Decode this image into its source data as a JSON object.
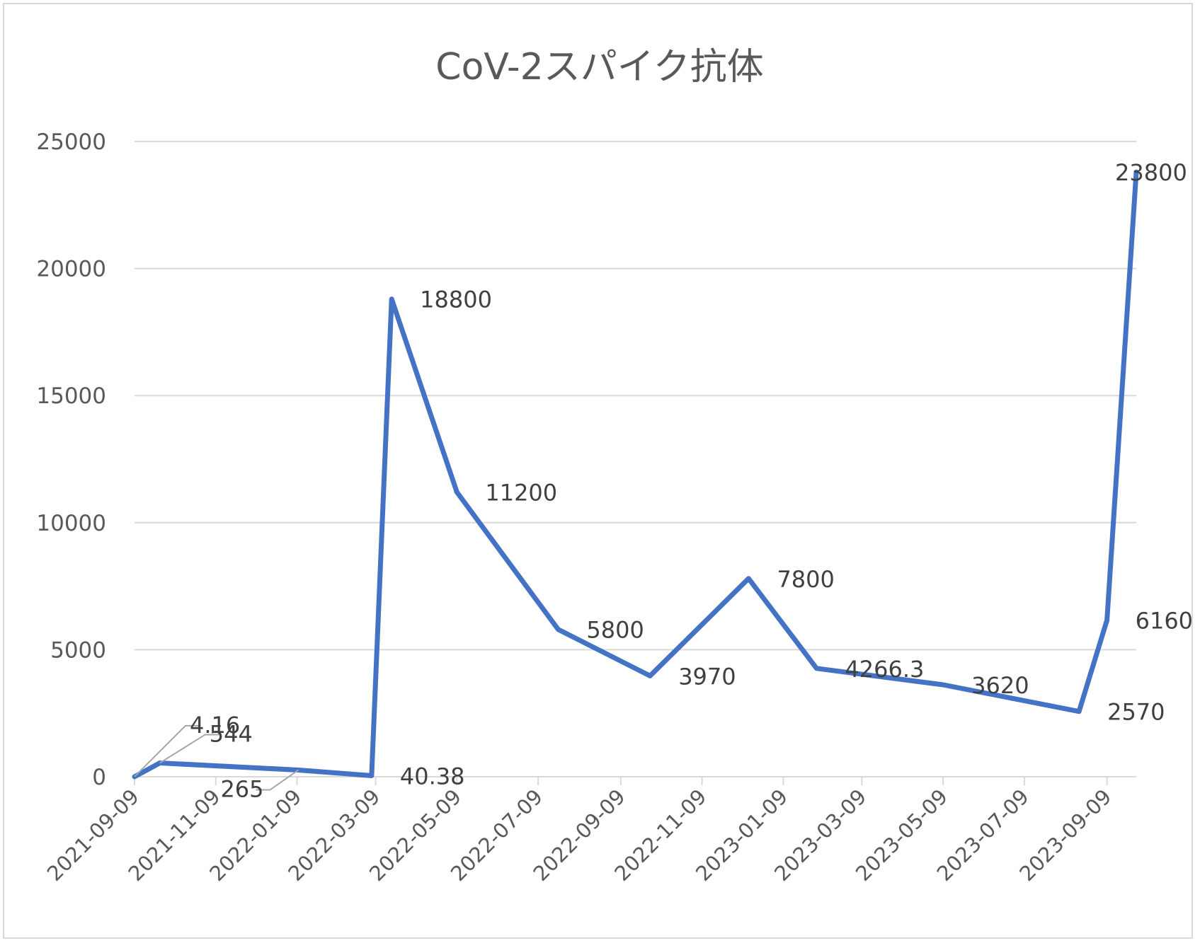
{
  "chart_data": {
    "type": "line",
    "title": "CoV-2スパイク抗体",
    "xlabel": "",
    "ylabel": "",
    "x_axis": {
      "type": "date",
      "range": [
        "2021-09-09",
        "2023-10-01"
      ],
      "tick_labels": [
        "2021-09-09",
        "2021-11-09",
        "2022-01-09",
        "2022-03-09",
        "2022-05-09",
        "2022-07-09",
        "2022-09-09",
        "2022-11-09",
        "2023-01-09",
        "2023-03-09",
        "2023-05-09",
        "2023-07-09",
        "2023-09-09"
      ]
    },
    "y_axis": {
      "range": [
        0,
        25000
      ],
      "tick_labels": [
        "0",
        "5000",
        "10000",
        "15000",
        "20000",
        "25000"
      ]
    },
    "grid": true,
    "legend": "none",
    "series": [
      {
        "color": "#4472C4",
        "points": [
          {
            "x": "2021-09-09",
            "y": 4.16,
            "label": "4.16"
          },
          {
            "x": "2021-09-28",
            "y": 544,
            "label": "544"
          },
          {
            "x": "2022-01-10",
            "y": 265,
            "label": "265"
          },
          {
            "x": "2022-03-06",
            "y": 40.38,
            "label": "40.38"
          },
          {
            "x": "2022-03-21",
            "y": 18800,
            "label": "18800"
          },
          {
            "x": "2022-05-09",
            "y": 11200,
            "label": "11200"
          },
          {
            "x": "2022-07-24",
            "y": 5800,
            "label": "5800"
          },
          {
            "x": "2022-10-01",
            "y": 3970,
            "label": "3970"
          },
          {
            "x": "2022-12-14",
            "y": 7800,
            "label": "7800"
          },
          {
            "x": "2023-02-03",
            "y": 4266.3,
            "label": "4266.3"
          },
          {
            "x": "2023-05-09",
            "y": 3620,
            "label": "3620"
          },
          {
            "x": "2023-08-19",
            "y": 2570,
            "label": "2570"
          },
          {
            "x": "2023-09-09",
            "y": 6160,
            "label": "6160"
          },
          {
            "x": "2023-10-01",
            "y": 23800,
            "label": "23800"
          }
        ]
      }
    ]
  }
}
